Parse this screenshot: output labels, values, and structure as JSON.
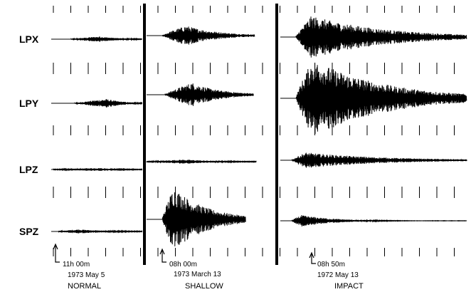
{
  "channels": [
    "LPX",
    "LPY",
    "LPZ",
    "SPZ"
  ],
  "panels": [
    {
      "time": "11h 00m",
      "date": "1973  May 5",
      "label": "NORMAL"
    },
    {
      "time": "08h 00m",
      "date": "1973 March 13",
      "label": "SHALLOW"
    },
    {
      "time": "08h 50m",
      "date": "1972 May 13",
      "label": "IMPACT"
    }
  ]
}
